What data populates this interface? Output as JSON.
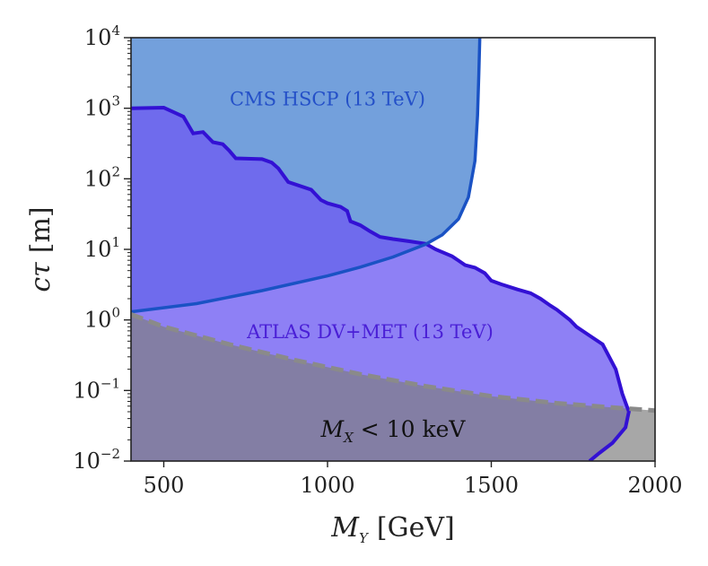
{
  "chart_data": {
    "type": "area",
    "x_scale": "linear",
    "y_scale": "log",
    "xlim": [
      400,
      2000
    ],
    "ylim": [
      0.01,
      10000
    ],
    "xlabel": "M_Y [GeV]",
    "xlabel_main": "M",
    "xlabel_sub": "Y",
    "xlabel_unit": "[GeV]",
    "ylabel": "cτ [m]",
    "ylabel_main": "cτ",
    "ylabel_unit": "[m]",
    "x_ticks": [
      500,
      1000,
      1500,
      2000
    ],
    "x_tick_labels": [
      "500",
      "1000",
      "1500",
      "2000"
    ],
    "y_ticks": [
      0.01,
      0.1,
      1,
      10,
      100,
      1000,
      10000
    ],
    "y_tick_labels": [
      {
        "base": "10",
        "exp": "−2"
      },
      {
        "base": "10",
        "exp": "−1"
      },
      {
        "base": "10",
        "exp": "0"
      },
      {
        "base": "10",
        "exp": "1"
      },
      {
        "base": "10",
        "exp": "2"
      },
      {
        "base": "10",
        "exp": "3"
      },
      {
        "base": "10",
        "exp": "4"
      }
    ],
    "series": [
      {
        "name": "CMS HSCP (13 TeV)",
        "fill": "#5b8fd6",
        "fill_opacity": 0.85,
        "line": "#1a52c4",
        "label_anchor": [
          1000,
          1000
        ],
        "label_color": "#2450c8",
        "boundary": [
          [
            400,
            1.3
          ],
          [
            600,
            1.7
          ],
          [
            800,
            2.6
          ],
          [
            1000,
            4.2
          ],
          [
            1100,
            5.6
          ],
          [
            1200,
            7.8
          ],
          [
            1300,
            11.8
          ],
          [
            1350,
            16
          ],
          [
            1400,
            27
          ],
          [
            1430,
            55
          ],
          [
            1450,
            180
          ],
          [
            1458,
            800
          ],
          [
            1462,
            3000
          ],
          [
            1465,
            10000
          ]
        ]
      },
      {
        "name": "ATLAS DV+MET (13 TeV)",
        "fill": "#6e5cf2",
        "fill_opacity": 0.78,
        "line": "#3311d4",
        "label_anchor": [
          1130,
          0.55
        ],
        "label_color": "#4a1fd6",
        "boundary": [
          [
            400,
            1000
          ],
          [
            500,
            1020
          ],
          [
            560,
            760
          ],
          [
            590,
            440
          ],
          [
            620,
            460
          ],
          [
            650,
            330
          ],
          [
            680,
            310
          ],
          [
            700,
            250
          ],
          [
            720,
            195
          ],
          [
            800,
            190
          ],
          [
            830,
            170
          ],
          [
            850,
            140
          ],
          [
            880,
            90
          ],
          [
            950,
            70
          ],
          [
            980,
            50
          ],
          [
            1000,
            45
          ],
          [
            1040,
            40
          ],
          [
            1060,
            35
          ],
          [
            1070,
            25
          ],
          [
            1100,
            22
          ],
          [
            1130,
            18
          ],
          [
            1160,
            15
          ],
          [
            1200,
            14
          ],
          [
            1250,
            13
          ],
          [
            1300,
            12
          ],
          [
            1330,
            10
          ],
          [
            1380,
            8
          ],
          [
            1420,
            6
          ],
          [
            1450,
            5.5
          ],
          [
            1480,
            4.6
          ],
          [
            1500,
            3.6
          ],
          [
            1530,
            3.2
          ],
          [
            1580,
            2.7
          ],
          [
            1620,
            2.4
          ],
          [
            1650,
            2
          ],
          [
            1680,
            1.6
          ],
          [
            1700,
            1.4
          ],
          [
            1740,
            1
          ],
          [
            1760,
            0.8
          ],
          [
            1800,
            0.6
          ],
          [
            1840,
            0.45
          ],
          [
            1880,
            0.2
          ],
          [
            1900,
            0.09
          ],
          [
            1920,
            0.05
          ],
          [
            1910,
            0.03
          ],
          [
            1870,
            0.018
          ],
          [
            1830,
            0.013
          ],
          [
            1800,
            0.01
          ]
        ]
      },
      {
        "name": "M_X < 10 keV",
        "label_main": "M",
        "label_sub": "X",
        "label_rest": " < 10 keV",
        "fill": "#7d7d7d",
        "fill_opacity": 0.68,
        "line": "#8a8a8a",
        "label_anchor": [
          1200,
          0.022
        ],
        "boundary": [
          [
            400,
            1.2
          ],
          [
            500,
            0.8
          ],
          [
            700,
            0.45
          ],
          [
            900,
            0.27
          ],
          [
            1100,
            0.17
          ],
          [
            1300,
            0.115
          ],
          [
            1500,
            0.083
          ],
          [
            1700,
            0.066
          ],
          [
            1900,
            0.056
          ],
          [
            2000,
            0.052
          ]
        ]
      }
    ]
  }
}
